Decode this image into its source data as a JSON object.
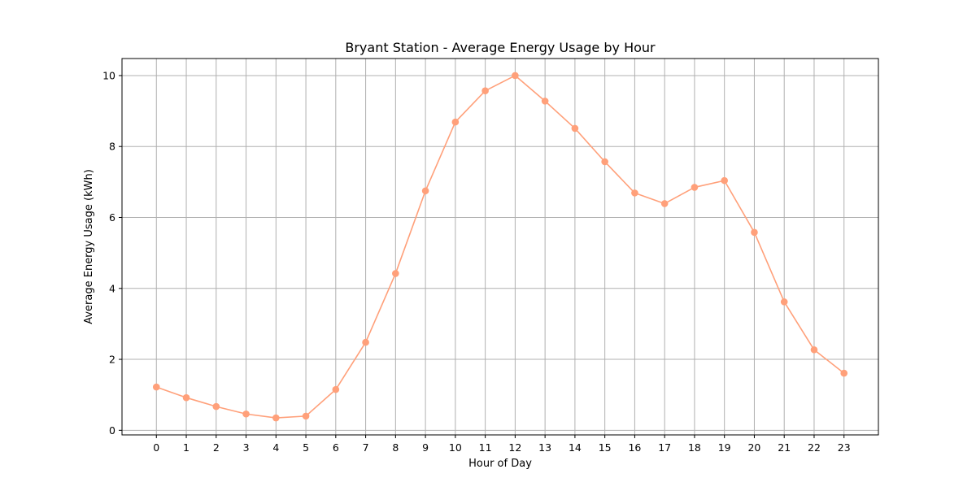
{
  "chart_data": {
    "type": "line",
    "title": "Bryant Station - Average Energy Usage by Hour",
    "xlabel": "Hour of Day",
    "ylabel": "Average Energy Usage (kWh)",
    "x": [
      0,
      1,
      2,
      3,
      4,
      5,
      6,
      7,
      8,
      9,
      10,
      11,
      12,
      13,
      14,
      15,
      16,
      17,
      18,
      19,
      20,
      21,
      22,
      23
    ],
    "series": [
      {
        "values": [
          1.22,
          0.92,
          0.67,
          0.46,
          0.35,
          0.4,
          1.15,
          2.48,
          4.42,
          6.75,
          8.69,
          9.57,
          10.0,
          9.28,
          8.51,
          7.57,
          6.69,
          6.39,
          6.85,
          7.04,
          5.58,
          3.62,
          2.27,
          1.61
        ],
        "color": "#FFA07A"
      }
    ],
    "xticks": [
      "0",
      "1",
      "2",
      "3",
      "4",
      "5",
      "6",
      "7",
      "8",
      "9",
      "10",
      "11",
      "12",
      "13",
      "14",
      "15",
      "16",
      "17",
      "18",
      "19",
      "20",
      "21",
      "22",
      "23"
    ],
    "yticks": [
      "0",
      "2",
      "4",
      "6",
      "8",
      "10"
    ],
    "xlim": [
      -1.15,
      24.15
    ],
    "ylim": [
      -0.13,
      10.48
    ],
    "grid": true,
    "marker": "circle"
  }
}
